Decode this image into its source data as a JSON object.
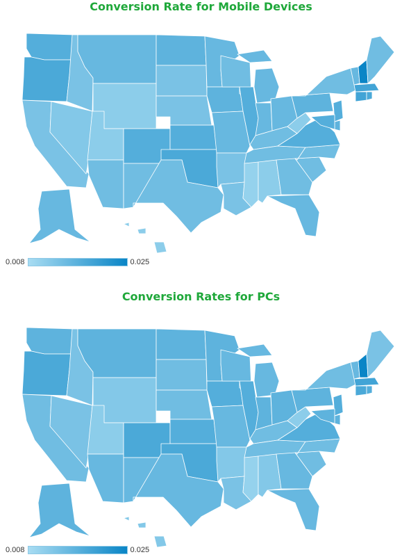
{
  "colors": {
    "low": "#a8dcf2",
    "high": "#0a85c6",
    "title": "#1fa83a"
  },
  "maps": [
    {
      "title": "Conversion Rate for Mobile Devices",
      "legend": {
        "min_label": "0.008",
        "max_label": "0.025",
        "min": 0.008,
        "max": 0.025
      },
      "values": {
        "WA": 0.017,
        "OR": 0.018,
        "CA": 0.013,
        "ID": 0.013,
        "NV": 0.012,
        "MT": 0.015,
        "WY": 0.011,
        "UT": 0.011,
        "AZ": 0.014,
        "CO": 0.017,
        "NM": 0.014,
        "ND": 0.016,
        "SD": 0.013,
        "NE": 0.013,
        "KS": 0.017,
        "OK": 0.018,
        "TX": 0.014,
        "MN": 0.015,
        "IA": 0.016,
        "MO": 0.015,
        "AR": 0.013,
        "LA": 0.013,
        "WI": 0.014,
        "IL": 0.017,
        "MI": 0.015,
        "IN": 0.015,
        "OH": 0.015,
        "KY": 0.014,
        "TN": 0.014,
        "MS": 0.01,
        "AL": 0.011,
        "GA": 0.014,
        "FL": 0.015,
        "SC": 0.014,
        "NC": 0.014,
        "VA": 0.017,
        "WV": 0.011,
        "PA": 0.016,
        "NY": 0.014,
        "VT": 0.015,
        "NH": 0.025,
        "ME": 0.014,
        "MA": 0.019,
        "CT": 0.019,
        "RI": 0.018,
        "NJ": 0.017,
        "DE": 0.016,
        "MD": 0.017,
        "AK": 0.015,
        "HI": 0.011
      }
    },
    {
      "title": "Conversion Rates for PCs",
      "legend": {
        "min_label": "0.008",
        "max_label": "0.025",
        "min": 0.008,
        "max": 0.025
      },
      "values": {
        "WA": 0.016,
        "OR": 0.018,
        "CA": 0.014,
        "ID": 0.013,
        "NV": 0.013,
        "MT": 0.016,
        "WY": 0.012,
        "UT": 0.011,
        "AZ": 0.015,
        "CO": 0.018,
        "NM": 0.015,
        "ND": 0.016,
        "SD": 0.014,
        "NE": 0.014,
        "KS": 0.017,
        "OK": 0.018,
        "TX": 0.015,
        "MN": 0.016,
        "IA": 0.017,
        "MO": 0.015,
        "AR": 0.012,
        "LA": 0.013,
        "WI": 0.015,
        "IL": 0.017,
        "MI": 0.015,
        "IN": 0.016,
        "OH": 0.016,
        "KY": 0.014,
        "TN": 0.014,
        "MS": 0.01,
        "AL": 0.012,
        "GA": 0.015,
        "FL": 0.015,
        "SC": 0.014,
        "NC": 0.014,
        "VA": 0.017,
        "WV": 0.011,
        "PA": 0.016,
        "NY": 0.014,
        "VT": 0.015,
        "NH": 0.025,
        "ME": 0.013,
        "MA": 0.019,
        "CT": 0.018,
        "RI": 0.017,
        "NJ": 0.017,
        "DE": 0.016,
        "MD": 0.016,
        "AK": 0.016,
        "HI": 0.012
      }
    }
  ]
}
